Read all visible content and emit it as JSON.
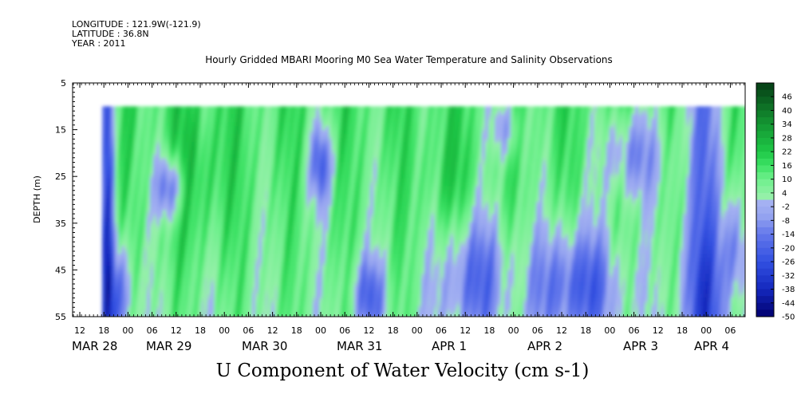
{
  "header": {
    "longitude": "LONGITUDE : 121.9W(-121.9)",
    "latitude": "LATITUDE : 36.8N",
    "year": "YEAR : 2011",
    "title": "Hourly Gridded MBARI Mooring M0 Sea Water Temperature and Salinity Observations"
  },
  "chart_data": {
    "type": "heatmap",
    "title": "U Component of Water Velocity (cm s-1)",
    "ylabel": "DEPTH (m)",
    "y_ticks": [
      5,
      15,
      25,
      35,
      45,
      55
    ],
    "ylim": [
      5,
      55
    ],
    "y_inverted": true,
    "data_depth_range": [
      10,
      55
    ],
    "x_hour_labels": [
      "12",
      "18",
      "00",
      "06",
      "12",
      "18",
      "00",
      "06",
      "12",
      "18",
      "00",
      "06",
      "12",
      "18",
      "00",
      "06",
      "12",
      "18",
      "00",
      "06",
      "12",
      "18",
      "00",
      "06",
      "12",
      "18",
      "00",
      "06"
    ],
    "x_date_labels": [
      "MAR 28",
      "MAR 29",
      "MAR 30",
      "MAR 31",
      "APR 1",
      "APR 2",
      "APR 3",
      "APR 4"
    ],
    "colorbar": {
      "labels": [
        "46",
        "40",
        "34",
        "28",
        "22",
        "16",
        "10",
        "4",
        "-2",
        "-8",
        "-14",
        "-20",
        "-26",
        "-32",
        "-38",
        "-44",
        "-50"
      ],
      "range": [
        -50,
        52
      ],
      "colors_hex": [
        "#0a4a1a",
        "#0d6d22",
        "#109a2c",
        "#14c43a",
        "#2ee05a",
        "#8ff2a4",
        "#a0aef0",
        "#5a6ae6",
        "#1f33c9",
        "#000080"
      ]
    },
    "description_values": {
      "dominant_range": [
        -14,
        22
      ],
      "negative_episodes": [
        "MAR 28 ~17h (all depths)",
        "MAR 30 ~00h 15-25m",
        "APR 1 ~06-12h 30-55m",
        "APR 2 deep",
        "APR 3 ~21h 10-55m"
      ]
    }
  }
}
